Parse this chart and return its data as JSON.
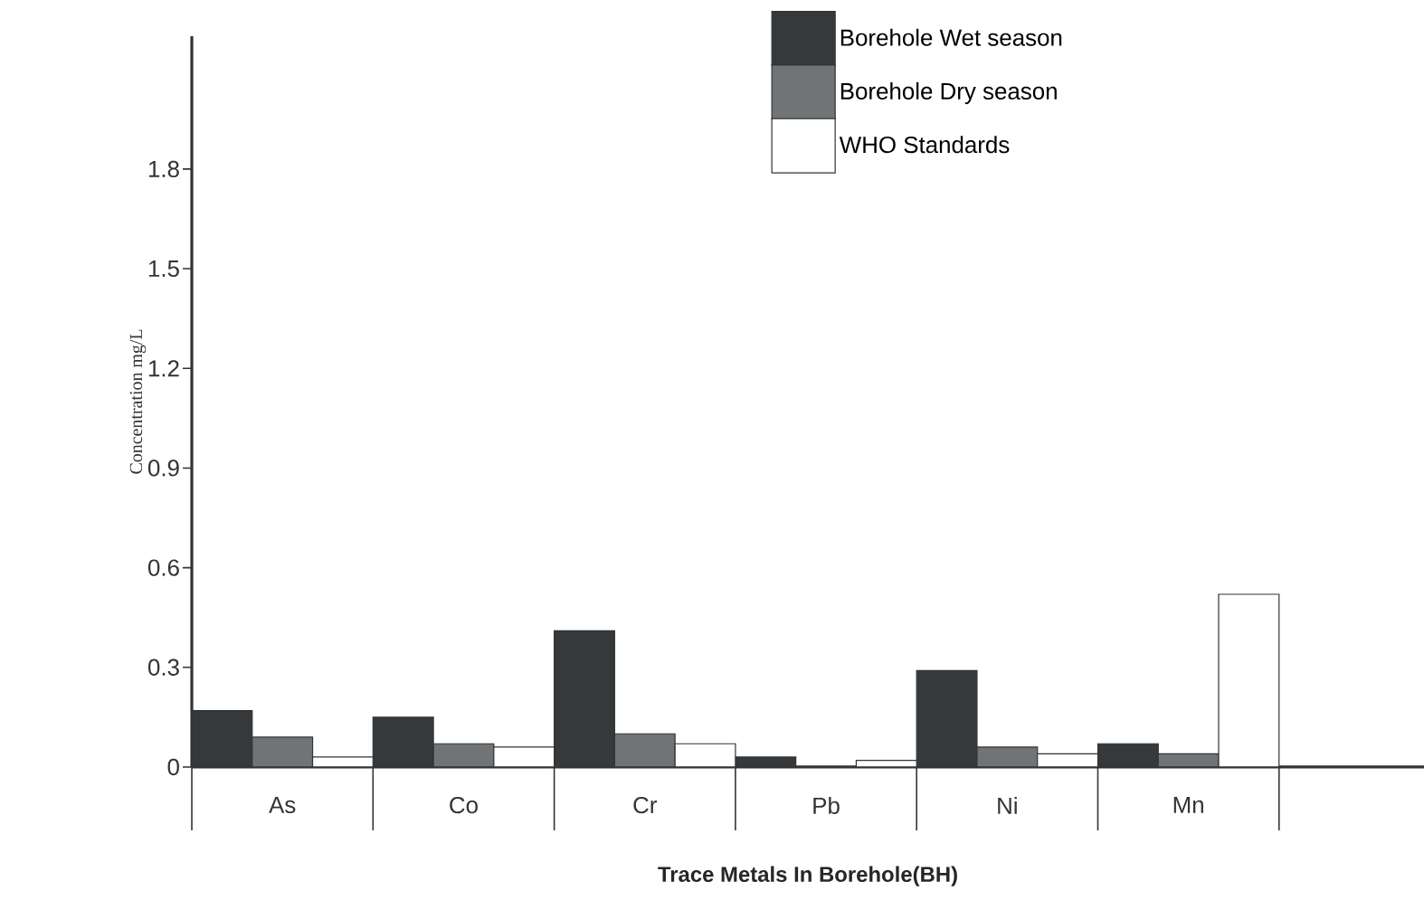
{
  "chart_data": {
    "type": "bar",
    "xlabel": "Trace Metals In Borehole(BH)",
    "ylabel": "Concentration mg/L",
    "categories": [
      "As",
      "Co",
      "Cr",
      "Pb",
      "Ni",
      "Mn"
    ],
    "series": [
      {
        "name": "Borehole Wet season",
        "color": "#35393b",
        "values": [
          0.17,
          0.15,
          0.41,
          0.03,
          0.29,
          0.07
        ]
      },
      {
        "name": "Borehole Dry season",
        "color": "#707476",
        "values": [
          0.09,
          0.07,
          0.1,
          null,
          0.06,
          0.04
        ]
      },
      {
        "name": "WHO  Standards",
        "color": "#ffffff",
        "values": [
          0.03,
          0.06,
          0.07,
          0.02,
          0.04,
          0.52
        ]
      }
    ],
    "ylim": [
      0,
      2.2
    ],
    "yticks": [
      0,
      0.3,
      0.6,
      0.9,
      1.2,
      1.5,
      1.8
    ],
    "grid": false,
    "legend": "top right"
  }
}
